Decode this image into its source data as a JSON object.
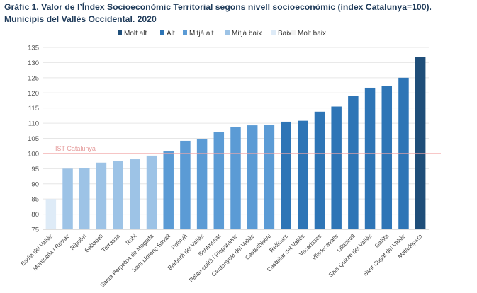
{
  "title": "Gràfic 1. Valor de l’Índex Socioeconòmic Territorial segons nivell socioeconòmic (índex Catalunya=100). Municipis del Vallès Occidental. 2020",
  "chart_data": {
    "type": "bar",
    "title": "Gràfic 1. Valor de l’Índex Socioeconòmic Territorial segons nivell socioeconòmic (índex Catalunya=100). Municipis del Vallès Occidental. 2020",
    "xlabel": "",
    "ylabel": "",
    "ylim": [
      75,
      135
    ],
    "yticks": [
      75,
      80,
      85,
      90,
      95,
      100,
      105,
      110,
      115,
      120,
      125,
      130,
      135
    ],
    "grid": true,
    "legend_position": "top",
    "legend": [
      {
        "name": "Molt alt",
        "color": "#1f4e79"
      },
      {
        "name": "Alt",
        "color": "#2e75b6"
      },
      {
        "name": "Mitjà alt",
        "color": "#5b9bd5"
      },
      {
        "name": "Mitjà baix",
        "color": "#9dc3e6"
      },
      {
        "name": "Baix",
        "color": "#deebf7"
      },
      {
        "name": "Molt baix",
        "color": "#f2f2f2"
      }
    ],
    "reference_line": {
      "label": "IST Catalunya",
      "value": 100,
      "color": "#f4a6a6"
    },
    "categories": [
      "Badia del Vallès",
      "Montcada i Reixac",
      "Ripollet",
      "Sabadell",
      "Terrassa",
      "Rubí",
      "Santa Perpètua de Mogoda",
      "Sant Llorenç Savall",
      "Polinyà",
      "Barberà del Vallès",
      "Sentmenat",
      "Palau-solità i Plegamans",
      "Cerdanyola del Vallès",
      "Castellbisbal",
      "Rellinars",
      "Castellar del Vallès",
      "Vacarisses",
      "Viladecavalls",
      "Ullastrell",
      "Sant Quirze del Vallès",
      "Gallifa",
      "Sant Cugat del Vallès",
      "Matadepera"
    ],
    "values": [
      85,
      95,
      95.3,
      97,
      97.5,
      98.1,
      99.3,
      100.8,
      104.2,
      104.8,
      107,
      108.7,
      109.3,
      109.5,
      110.5,
      110.8,
      113.8,
      115.5,
      119.1,
      121.7,
      122.2,
      125,
      131.9
    ],
    "levels": [
      "Baix",
      "Mitjà baix",
      "Mitjà baix",
      "Mitjà baix",
      "Mitjà baix",
      "Mitjà baix",
      "Mitjà baix",
      "Mitjà alt",
      "Mitjà alt",
      "Mitjà alt",
      "Mitjà alt",
      "Mitjà alt",
      "Mitjà alt",
      "Mitjà alt",
      "Alt",
      "Alt",
      "Alt",
      "Alt",
      "Alt",
      "Alt",
      "Alt",
      "Alt",
      "Molt alt"
    ]
  }
}
